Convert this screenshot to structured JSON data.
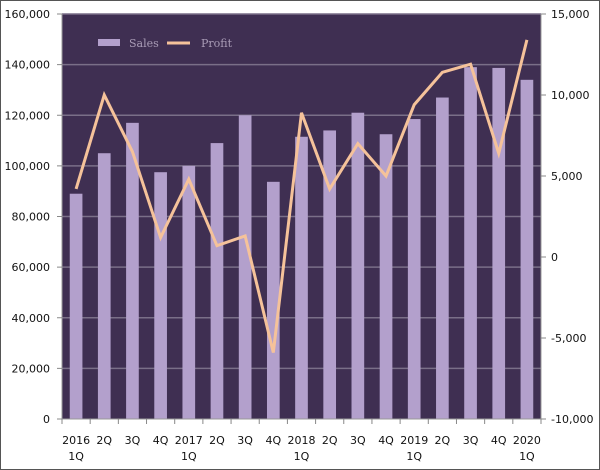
{
  "chart_data": {
    "type": "bar",
    "title": "",
    "xlabel": "",
    "ylabel": "",
    "y2label": "",
    "categories": [
      [
        "2016",
        "1Q"
      ],
      [
        "2Q"
      ],
      [
        "3Q"
      ],
      [
        "4Q"
      ],
      [
        "2017",
        "1Q"
      ],
      [
        "2Q"
      ],
      [
        "3Q"
      ],
      [
        "4Q"
      ],
      [
        "2018",
        "1Q"
      ],
      [
        "2Q"
      ],
      [
        "3Q"
      ],
      [
        "4Q"
      ],
      [
        "2019",
        "1Q"
      ],
      [
        "2Q"
      ],
      [
        "3Q"
      ],
      [
        "4Q"
      ],
      [
        "2020",
        "1Q"
      ]
    ],
    "series": [
      {
        "name": "Sales",
        "type": "bar",
        "axis": "left",
        "color": "#b3a0cc",
        "values": [
          89000,
          105000,
          117000,
          97500,
          100000,
          109000,
          120000,
          93700,
          111500,
          114000,
          121000,
          112500,
          118500,
          127000,
          139000,
          138700,
          134000
        ]
      },
      {
        "name": "Profit",
        "type": "line",
        "axis": "right",
        "color": "#f5c29a",
        "values": [
          4200,
          10000,
          6500,
          1200,
          4800,
          700,
          1300,
          -5900,
          8900,
          4200,
          7000,
          5000,
          9400,
          11400,
          11900,
          6400,
          13400
        ]
      }
    ],
    "ylim": [
      0,
      160000
    ],
    "yticks": [
      0,
      20000,
      40000,
      60000,
      80000,
      100000,
      120000,
      140000,
      160000
    ],
    "ytick_labels": [
      "0",
      "20,000",
      "40,000",
      "60,000",
      "80,000",
      "100,000",
      "120,000",
      "140,000",
      "160,000"
    ],
    "y2lim": [
      -10000,
      15000
    ],
    "y2ticks": [
      -10000,
      -5000,
      0,
      5000,
      10000,
      15000
    ],
    "y2tick_labels": [
      "-10,000",
      "-5,000",
      "0",
      "5,000",
      "10,000",
      "15,000"
    ],
    "grid": true,
    "legend": {
      "placement": "top-left",
      "entries": [
        "Sales",
        "Profit"
      ]
    },
    "colors": {
      "plot_background": "#3f2f52",
      "gridline": "#7a6f88"
    }
  }
}
